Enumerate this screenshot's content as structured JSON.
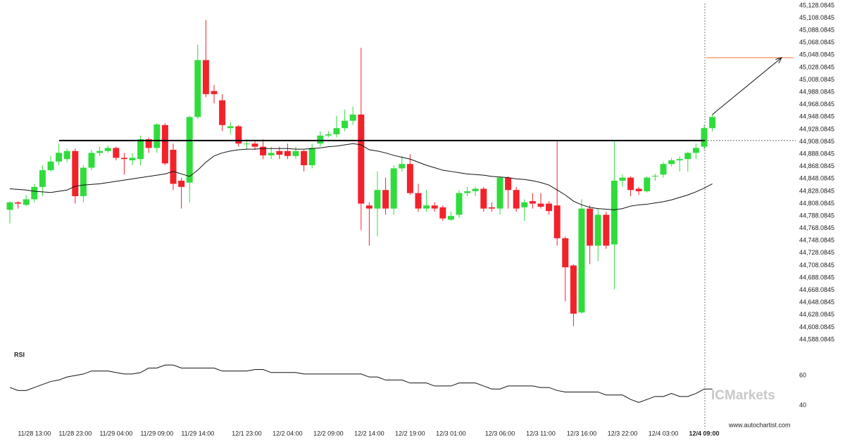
{
  "chart_data": {
    "type": "candlestick",
    "up_color": "#2fdc3c",
    "down_color": "#f2222b",
    "categories": [
      null,
      null,
      null,
      "11/28 13:00",
      null,
      null,
      null,
      null,
      "11/28 23:00",
      null,
      null,
      null,
      null,
      "11/29 04:00",
      null,
      null,
      null,
      null,
      "11/29 09:00",
      null,
      null,
      null,
      null,
      "11/29 14:00",
      null,
      null,
      null,
      null,
      null,
      "12/1 23:00",
      null,
      null,
      null,
      null,
      "12/2 04:00",
      null,
      null,
      null,
      null,
      "12/2 09:00",
      null,
      null,
      null,
      null,
      "12/2 14:00",
      null,
      null,
      null,
      null,
      "12/2 19:00",
      null,
      null,
      null,
      null,
      "12/3 01:00",
      null,
      null,
      null,
      null,
      null,
      "12/3 06:00",
      null,
      null,
      null,
      null,
      "12/3 11:00",
      null,
      null,
      null,
      null,
      "12/3 16:00",
      null,
      null,
      null,
      null,
      "12/3 22:00",
      null,
      null,
      null,
      null,
      "12/4 03:00",
      null,
      null,
      null,
      null,
      "12/4 09:00",
      null
    ],
    "open": [
      44798,
      44810,
      44806,
      44815,
      44835,
      44862,
      44876,
      44880,
      44893,
      44820,
      44866,
      44890,
      44893,
      44898,
      44882,
      44878,
      44880,
      44912,
      44898,
      44935,
      44895,
      44845,
      44842,
      44948,
      45040,
      44990,
      44975,
      44930,
      44933,
      44905,
      44905,
      44900,
      44886,
      44893,
      44893,
      44885,
      44893,
      44870,
      44905,
      44918,
      44920,
      44930,
      44942,
      44952,
      44805,
      44800,
      44830,
      44800,
      44865,
      44872,
      44825,
      44800,
      44805,
      44802,
      44782,
      44790,
      44825,
      44828,
      44832,
      44802,
      44800,
      44850,
      44830,
      44802,
      44812,
      44808,
      44808,
      44805,
      44752,
      44708,
      44632,
      44800,
      44740,
      44790,
      44742,
      44845,
      44850,
      44832,
      44828,
      44852,
      44855,
      44872,
      44878,
      44880,
      44890,
      44900,
      44930
    ],
    "high": [
      44812,
      44812,
      44822,
      44840,
      44870,
      44885,
      44905,
      44897,
      44897,
      44870,
      44895,
      44900,
      44902,
      44900,
      44890,
      44890,
      44918,
      44915,
      44938,
      44938,
      44905,
      44850,
      44950,
      45065,
      45105,
      45000,
      44985,
      44940,
      44935,
      44912,
      44910,
      44912,
      44900,
      44900,
      44905,
      44900,
      44895,
      44905,
      44925,
      44925,
      44950,
      44960,
      44965,
      45060,
      44810,
      44860,
      44850,
      44870,
      44885,
      44888,
      44840,
      44830,
      44810,
      44805,
      44795,
      44830,
      44835,
      44835,
      44835,
      44810,
      44852,
      44852,
      44835,
      44815,
      44825,
      44825,
      44812,
      44910,
      44755,
      44710,
      44815,
      44805,
      44800,
      44795,
      44910,
      44855,
      44852,
      44835,
      44852,
      44856,
      44875,
      44882,
      44884,
      44892,
      44905,
      44935,
      44952
    ],
    "low": [
      44776,
      44800,
      44804,
      44810,
      44820,
      44860,
      44870,
      44875,
      44808,
      44810,
      44862,
      44885,
      44890,
      44878,
      44855,
      44870,
      44870,
      44890,
      44890,
      44870,
      44830,
      44800,
      44810,
      44945,
      44980,
      44970,
      44925,
      44920,
      44900,
      44895,
      44895,
      44880,
      44880,
      44880,
      44880,
      44880,
      44860,
      44865,
      44900,
      44915,
      44915,
      44925,
      44935,
      44765,
      44740,
      44755,
      44790,
      44790,
      44860,
      44822,
      44795,
      44795,
      44795,
      44780,
      44780,
      44785,
      44820,
      44820,
      44795,
      44795,
      44790,
      44800,
      44795,
      44780,
      44800,
      44800,
      44790,
      44740,
      44650,
      44610,
      44630,
      44710,
      44715,
      44735,
      44670,
      44835,
      44820,
      44822,
      44826,
      44845,
      44850,
      44868,
      44860,
      44860,
      44880,
      44895,
      44925
    ],
    "close": [
      44810,
      44808,
      44815,
      44835,
      44862,
      44876,
      44890,
      44893,
      44820,
      44866,
      44890,
      44893,
      44898,
      44882,
      44880,
      44882,
      44912,
      44898,
      44936,
      44873,
      44840,
      44835,
      44948,
      45040,
      44985,
      44985,
      44935,
      44933,
      44905,
      44905,
      44900,
      44886,
      44890,
      44887,
      44885,
      44893,
      44870,
      44898,
      44918,
      44920,
      44930,
      44942,
      44952,
      44808,
      44800,
      44830,
      44800,
      44865,
      44872,
      44825,
      44800,
      44805,
      44800,
      44784,
      44788,
      44825,
      44828,
      44832,
      44800,
      44800,
      44850,
      44830,
      44800,
      44810,
      44808,
      44803,
      44796,
      44752,
      44705,
      44630,
      44800,
      44740,
      44790,
      44740,
      44845,
      44850,
      44830,
      44828,
      44850,
      44853,
      44872,
      44878,
      44880,
      44890,
      44898,
      44930,
      44948
    ],
    "moving_average": [
      44832,
      44831,
      44830,
      44828,
      44827,
      44826,
      44828,
      44830,
      44836,
      44838,
      44839,
      44840,
      44842,
      44844,
      44846,
      44848,
      44850,
      44852,
      44854,
      44856,
      44860,
      44856,
      44852,
      44862,
      44875,
      44885,
      44890,
      44893,
      44895,
      44896,
      44896,
      44897,
      44897,
      44897,
      44897,
      44896,
      44896,
      44897,
      44898,
      44900,
      44901,
      44903,
      44905,
      44903,
      44895,
      44893,
      44890,
      44886,
      44883,
      44880,
      44875,
      44870,
      44866,
      44862,
      44860,
      44858,
      44856,
      44855,
      44854,
      44852,
      44851,
      44850,
      44848,
      44847,
      44845,
      44842,
      44838,
      44830,
      44822,
      44812,
      44806,
      44802,
      44800,
      44799,
      44798,
      44800,
      44804,
      44806,
      44807,
      44809,
      44811,
      44814,
      44818,
      44822,
      44827,
      44833,
      44840
    ],
    "resistance_level": 44910,
    "target_level": 45044,
    "ylim": [
      44588.0845,
      45128.0845
    ],
    "yticks": [
      {
        "value": 45128.0845,
        "label": "45,128.0845"
      },
      {
        "value": 45108.0845,
        "label": "45,108.0845"
      },
      {
        "value": 45088.0845,
        "label": "45,088.0845"
      },
      {
        "value": 45068.0845,
        "label": "45,068.0845"
      },
      {
        "value": 45048.0845,
        "label": "45,048.0845"
      },
      {
        "value": 45028.0845,
        "label": "45,028.0845"
      },
      {
        "value": 45008.0845,
        "label": "45,008.0845"
      },
      {
        "value": 44988.0845,
        "label": "44,988.0845"
      },
      {
        "value": 44968.0845,
        "label": "44,968.0845"
      },
      {
        "value": 44948.0845,
        "label": "44,948.0845"
      },
      {
        "value": 44928.0845,
        "label": "44,928.0845"
      },
      {
        "value": 44908.0845,
        "label": "44,908.0845"
      },
      {
        "value": 44888.0845,
        "label": "44,888.0845"
      },
      {
        "value": 44868.0845,
        "label": "44,868.0845"
      },
      {
        "value": 44848.0845,
        "label": "44,848.0845"
      },
      {
        "value": 44828.0845,
        "label": "44,828.0845"
      },
      {
        "value": 44808.0845,
        "label": "44,808.0845"
      },
      {
        "value": 44788.0845,
        "label": "44,788.0845"
      },
      {
        "value": 44768.0845,
        "label": "44,768.0845"
      },
      {
        "value": 44748.0845,
        "label": "44,748.0845"
      },
      {
        "value": 44728.0845,
        "label": "44,728.0845"
      },
      {
        "value": 44708.0845,
        "label": "44,708.0845"
      },
      {
        "value": 44688.0845,
        "label": "44,688.0845"
      },
      {
        "value": 44668.0845,
        "label": "44,668.0845"
      },
      {
        "value": 44648.0845,
        "label": "44,648.0845"
      },
      {
        "value": 44628.0845,
        "label": "44,628.0845"
      },
      {
        "value": 44608.0845,
        "label": "44,608.0845"
      },
      {
        "value": 44588.0845,
        "label": "44,588.0845"
      }
    ],
    "rsi": {
      "label": "RSI",
      "values": [
        52,
        50,
        50,
        52,
        54,
        56,
        57,
        59,
        60,
        61,
        63,
        63,
        63,
        62,
        61,
        61,
        62,
        65,
        65,
        67,
        67,
        65,
        65,
        65,
        65,
        65,
        63,
        63,
        63,
        63,
        64,
        64,
        62,
        62,
        62,
        62,
        61,
        61,
        61,
        61,
        61,
        61,
        61,
        61,
        59,
        59,
        57,
        57,
        57,
        55,
        55,
        55,
        53,
        53,
        53,
        55,
        55,
        55,
        53,
        51,
        51,
        53,
        53,
        53,
        53,
        52,
        52,
        50,
        49,
        49,
        49,
        49,
        49,
        47,
        47,
        47,
        44,
        42,
        44,
        46,
        46,
        48,
        46,
        46,
        48,
        51,
        51
      ],
      "ylim": [
        29,
        76
      ],
      "yticks": [
        60,
        40
      ]
    },
    "watermark": "ICMarkets",
    "credit": "www.autochartist.com"
  }
}
